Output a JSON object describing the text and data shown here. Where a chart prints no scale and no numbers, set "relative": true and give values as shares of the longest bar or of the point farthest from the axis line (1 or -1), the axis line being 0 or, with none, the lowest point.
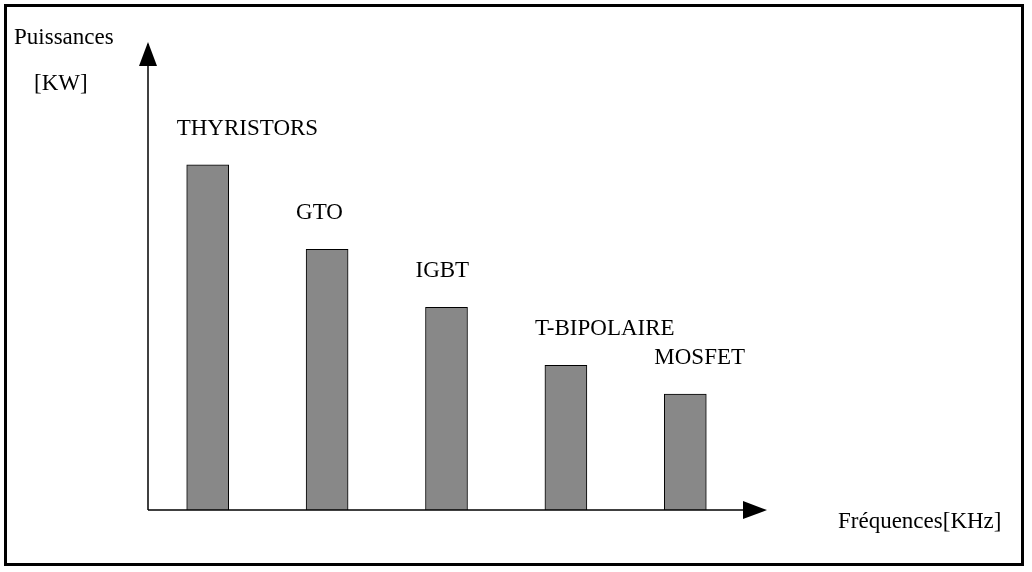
{
  "chart_data": {
    "type": "bar",
    "xlabel": "Fréquences[KHz]",
    "ylabel": "Puissances [KW]",
    "categories": [
      "THYRISTORS",
      "GTO",
      "IGBT",
      "T-BIPOLAIRE",
      "MOSFET"
    ],
    "values": [
      1,
      0.755,
      0.587,
      0.419,
      0.336
    ],
    "color": "#888888",
    "relative": true
  }
}
